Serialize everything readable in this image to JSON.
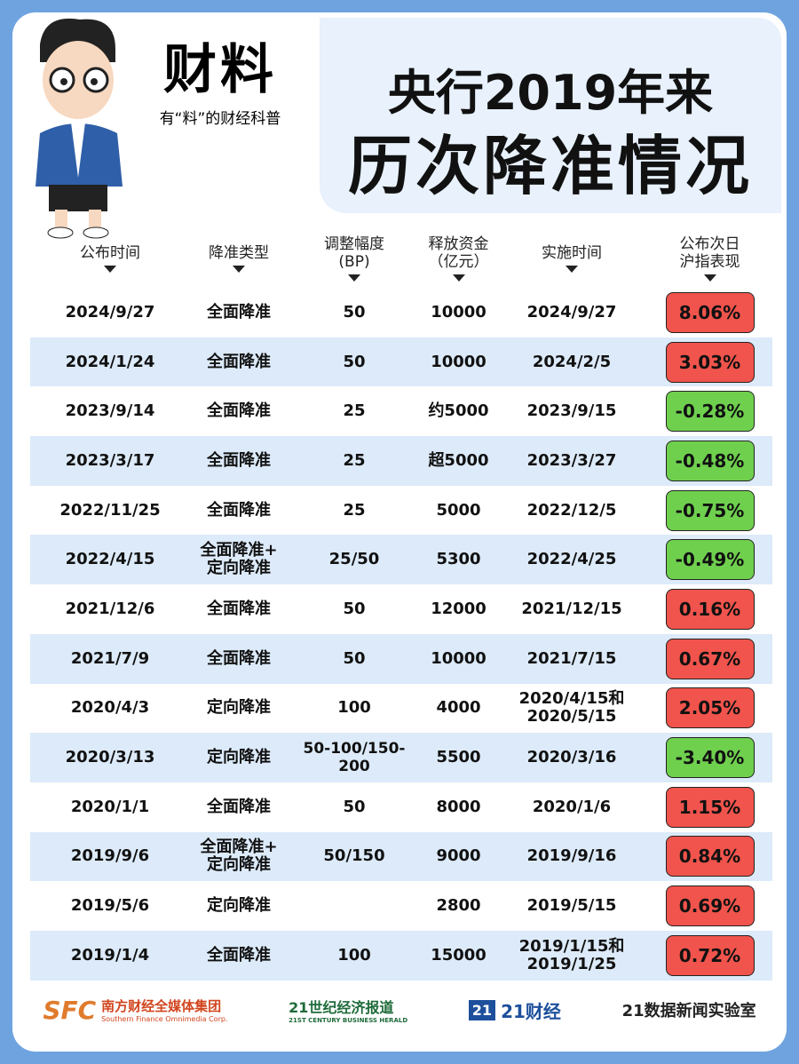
{
  "brand": {
    "name": "财料",
    "slogan": "有“料”的财经科普"
  },
  "title": [
    "央行2019年来",
    "历次降准情况"
  ],
  "table": {
    "headers": [
      [
        "公布时间"
      ],
      [
        "降准类型"
      ],
      [
        "调整幅度",
        "(BP)"
      ],
      [
        "释放资金",
        "（亿元）"
      ],
      [
        "实施时间"
      ],
      [
        "公布次日",
        "沪指表现"
      ]
    ],
    "rows": [
      [
        "2024/9/27",
        [
          "全面降准"
        ],
        "50",
        "10000",
        [
          "2024/9/27"
        ],
        "8.06%"
      ],
      [
        "2024/1/24",
        [
          "全面降准"
        ],
        "50",
        "10000",
        [
          "2024/2/5"
        ],
        "3.03%"
      ],
      [
        "2023/9/14",
        [
          "全面降准"
        ],
        "25",
        "约5000",
        [
          "2023/9/15"
        ],
        "-0.28%"
      ],
      [
        "2023/3/17",
        [
          "全面降准"
        ],
        "25",
        "超5000",
        [
          "2023/3/27"
        ],
        "-0.48%"
      ],
      [
        "2022/11/25",
        [
          "全面降准"
        ],
        "25",
        "5000",
        [
          "2022/12/5"
        ],
        "-0.75%"
      ],
      [
        "2022/4/15",
        [
          "全面降准+",
          "定向降准"
        ],
        "25/50",
        "5300",
        [
          "2022/4/25"
        ],
        "-0.49%"
      ],
      [
        "2021/12/6",
        [
          "全面降准"
        ],
        "50",
        "12000",
        [
          "2021/12/15"
        ],
        "0.16%"
      ],
      [
        "2021/7/9",
        [
          "全面降准"
        ],
        "50",
        "10000",
        [
          "2021/7/15"
        ],
        "0.67%"
      ],
      [
        "2020/4/3",
        [
          "定向降准"
        ],
        "100",
        "4000",
        [
          "2020/4/15和",
          "2020/5/15"
        ],
        "2.05%"
      ],
      [
        "2020/3/13",
        [
          "定向降准"
        ],
        "50-100/150-200",
        "5500",
        [
          "2020/3/16"
        ],
        "-3.40%"
      ],
      [
        "2020/1/1",
        [
          "全面降准"
        ],
        "50",
        "8000",
        [
          "2020/1/6"
        ],
        "1.15%"
      ],
      [
        "2019/9/6",
        [
          "全面降准+",
          "定向降准"
        ],
        "50/150",
        "9000",
        [
          "2019/9/16"
        ],
        "0.84%"
      ],
      [
        "2019/5/6",
        [
          "定向降准"
        ],
        null,
        "2800",
        [
          "2019/5/15"
        ],
        "0.69%"
      ],
      [
        "2019/1/4",
        [
          "全面降准"
        ],
        "100",
        "15000",
        [
          "2019/1/15和",
          "2019/1/25"
        ],
        "0.72%"
      ]
    ]
  },
  "footer": {
    "sfc": "SFC",
    "sfc_name": "南方财经全媒体集团",
    "sfc_en": "Southern Finance Omnimedia Corp.",
    "herald": "21世纪经济报道",
    "herald_en": "21ST CENTURY BUSINESS HERALD",
    "logo21": "21",
    "caijing": "21财经",
    "lab": "21数据新闻实验室"
  }
}
